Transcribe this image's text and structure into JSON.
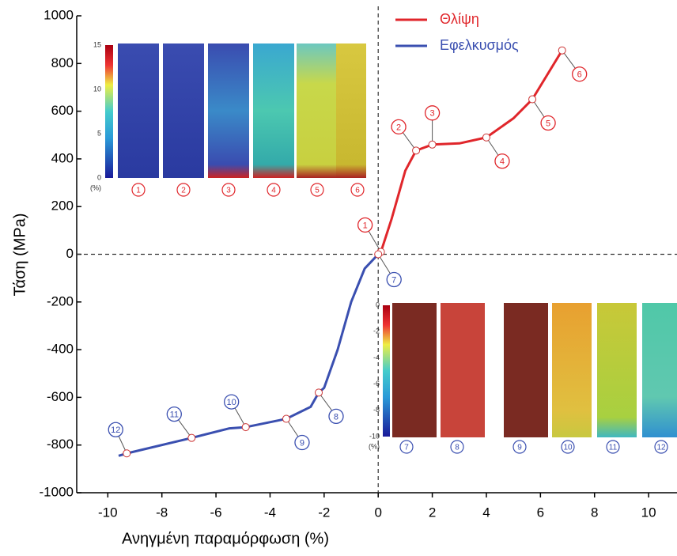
{
  "chart_data": {
    "type": "line",
    "xlabel": "Ανηγμένη παραμόρφωση (%)",
    "ylabel": "Τάση (MPa)",
    "xlim": [
      -11.15,
      11.05
    ],
    "ylim": [
      -1000,
      1000
    ],
    "xticks": [
      -10,
      -8,
      -6,
      -4,
      -2,
      0,
      2,
      4,
      6,
      8,
      10
    ],
    "yticks": [
      -1000,
      -800,
      -600,
      -400,
      -200,
      0,
      200,
      400,
      600,
      800,
      1000
    ],
    "hline": 0,
    "vline": 0,
    "series": [
      {
        "name": "Θλίψη",
        "color": "#e0262b",
        "x": [
          0.1,
          0.5,
          1.0,
          1.4,
          2.0,
          3.0,
          4.0,
          5.0,
          5.7,
          6.8
        ],
        "values": [
          10,
          150,
          350,
          435,
          460,
          465,
          490,
          570,
          650,
          855
        ],
        "markers": [
          {
            "label": "1",
            "x": 0.1,
            "y": 10
          },
          {
            "label": "2",
            "x": 1.4,
            "y": 435
          },
          {
            "label": "3",
            "x": 2.0,
            "y": 460
          },
          {
            "label": "4",
            "x": 4.0,
            "y": 490
          },
          {
            "label": "5",
            "x": 5.7,
            "y": 650
          },
          {
            "label": "6",
            "x": 6.8,
            "y": 855
          }
        ]
      },
      {
        "name": "Εφελκυσμός",
        "color": "#3a4fb0",
        "x": [
          0,
          -0.5,
          -1.0,
          -1.5,
          -2.0,
          -2.2,
          -2.5,
          -3.4,
          -4.9,
          -5.5,
          -6.9,
          -9.3,
          -9.6
        ],
        "values": [
          0,
          -60,
          -200,
          -400,
          -560,
          -580,
          -640,
          -690,
          -725,
          -730,
          -770,
          -835,
          -845
        ],
        "markers": [
          {
            "label": "7",
            "x": 0,
            "y": 0
          },
          {
            "label": "8",
            "x": -2.2,
            "y": -580
          },
          {
            "label": "9",
            "x": -3.4,
            "y": -690
          },
          {
            "label": "10",
            "x": -4.9,
            "y": -725
          },
          {
            "label": "11",
            "x": -6.9,
            "y": -770
          },
          {
            "label": "12",
            "x": -9.3,
            "y": -835
          }
        ]
      }
    ],
    "insets": [
      {
        "colorbar_ticks": [
          15,
          10,
          5,
          0
        ],
        "unit": "(%)",
        "labels": [
          "1",
          "2",
          "3",
          "4",
          "5",
          "6"
        ]
      },
      {
        "colorbar_ticks": [
          0,
          -2,
          -4,
          -6,
          -8,
          -10
        ],
        "unit": "(%)",
        "labels": [
          "7",
          "8",
          "9",
          "10",
          "11",
          "12"
        ]
      }
    ]
  }
}
